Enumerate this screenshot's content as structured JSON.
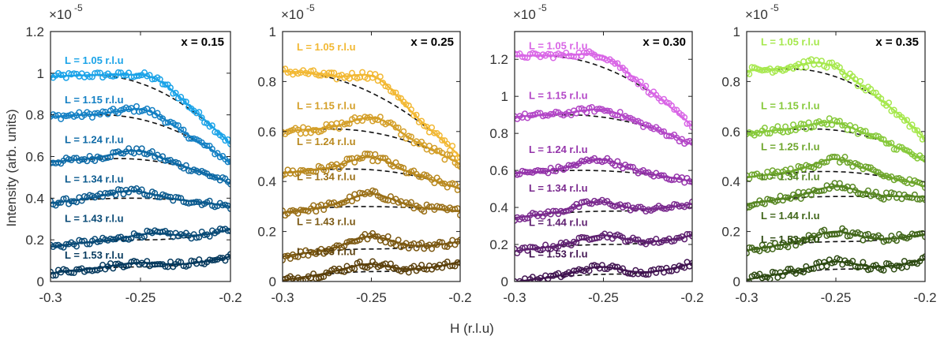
{
  "figure": {
    "ylabel": "Intensity (arb. units)",
    "xlabel": "H (r.l.u)",
    "multiplier": "×10",
    "exponent": "-5"
  },
  "chart_data": [
    {
      "type": "scatter",
      "title": "x = 0.15",
      "xlim": [
        -0.3,
        -0.2
      ],
      "ylim": [
        0,
        1.2
      ],
      "xticks": [
        -0.3,
        -0.25,
        -0.2
      ],
      "xtick_labels": [
        "-0.3",
        "-0.25",
        "-0.2"
      ],
      "yticks": [
        0,
        0.2,
        0.4,
        0.6,
        0.8,
        1,
        1.2
      ],
      "ytick_labels": [
        "0",
        "0.2",
        "0.4",
        "0.6",
        "0.8",
        "1",
        "1.2"
      ],
      "series": [
        {
          "name": "L = 1.05 r.l.u",
          "color": "#1aa3e8",
          "base": 0.99,
          "amp": 0.05,
          "peak": -0.242,
          "bgcenter": -0.276,
          "bgwidth": 0.026,
          "drop": 0.33,
          "label_y": 1.045
        },
        {
          "name": "L = 1.15 r.l.u",
          "color": "#1480c4",
          "base": 0.8,
          "amp": 0.05,
          "peak": -0.247,
          "bgcenter": -0.272,
          "bgwidth": 0.028,
          "drop": 0.23,
          "label_y": 0.855
        },
        {
          "name": "L = 1.24 r.l.u",
          "color": "#0e6aa6",
          "base": 0.59,
          "amp": 0.04,
          "peak": -0.252,
          "bgcenter": -0.262,
          "bgwidth": 0.034,
          "drop": 0.12,
          "label_y": 0.665
        },
        {
          "name": "L = 1.34 r.l.u",
          "color": "#0b5a8e",
          "base": 0.4,
          "amp": 0.035,
          "peak": -0.256,
          "bgcenter": -0.255,
          "bgwidth": 0.04,
          "drop": 0.04,
          "label_y": 0.475
        },
        {
          "name": "L = 1.43 r.l.u",
          "color": "#094a76",
          "base": 0.2,
          "amp": 0.03,
          "peak": -0.243,
          "bgcenter": -0.247,
          "bgwidth": 0.045,
          "drop": -0.05,
          "label_y": 0.285
        },
        {
          "name": "L = 1.53 r.l.u",
          "color": "#063a5e",
          "base": 0.07,
          "amp": 0.02,
          "peak": -0.25,
          "bgcenter": -0.25,
          "bgwidth": 0.05,
          "drop": -0.05,
          "label_y": 0.11
        }
      ]
    },
    {
      "type": "scatter",
      "title": "x = 0.25",
      "xlim": [
        -0.3,
        -0.2
      ],
      "ylim": [
        0,
        1
      ],
      "xticks": [
        -0.3,
        -0.25,
        -0.2
      ],
      "xtick_labels": [
        "-0.3",
        "-0.25",
        "-0.2"
      ],
      "yticks": [
        0,
        0.2,
        0.4,
        0.6,
        0.8,
        1
      ],
      "ytick_labels": [
        "0",
        "0.2",
        "0.4",
        "0.6",
        "0.8",
        "1"
      ],
      "series": [
        {
          "name": "L = 1.05 r.l.u",
          "color": "#f2b833",
          "base": 0.84,
          "amp": 0.07,
          "peak": -0.247,
          "bgcenter": -0.3,
          "bgwidth": 0.06,
          "drop": 0.34,
          "label_y": 0.925
        },
        {
          "name": "L = 1.15 r.l.u",
          "color": "#d49f28",
          "base": 0.61,
          "amp": 0.06,
          "peak": -0.248,
          "bgcenter": -0.272,
          "bgwidth": 0.03,
          "drop": 0.14,
          "label_y": 0.69
        },
        {
          "name": "L = 1.24 r.l.u",
          "color": "#b9891f",
          "base": 0.45,
          "amp": 0.05,
          "peak": -0.25,
          "bgcenter": -0.262,
          "bgwidth": 0.035,
          "drop": 0.08,
          "label_y": 0.545
        },
        {
          "name": "L = 1.34 r.l.u",
          "color": "#9a7018",
          "base": 0.3,
          "amp": 0.05,
          "peak": -0.25,
          "bgcenter": -0.255,
          "bgwidth": 0.04,
          "drop": 0.02,
          "label_y": 0.405
        },
        {
          "name": "L = 1.43 r.l.u",
          "color": "#7b5812",
          "base": 0.13,
          "amp": 0.05,
          "peak": -0.25,
          "bgcenter": -0.25,
          "bgwidth": 0.045,
          "drop": -0.03,
          "label_y": 0.225
        },
        {
          "name": "L = 1.53 r.l.u",
          "color": "#5c410c",
          "base": 0.04,
          "amp": 0.03,
          "peak": -0.252,
          "bgcenter": -0.245,
          "bgwidth": 0.05,
          "drop": -0.04,
          "label_y": 0.105
        }
      ]
    },
    {
      "type": "scatter",
      "title": "x = 0.30",
      "xlim": [
        -0.3,
        -0.2
      ],
      "ylim": [
        0,
        1.35
      ],
      "xticks": [
        -0.3,
        -0.25,
        -0.2
      ],
      "xtick_labels": [
        "-0.3",
        "-0.25",
        "-0.2"
      ],
      "yticks": [
        0,
        0.2,
        0.4,
        0.6,
        0.8,
        1,
        1.2
      ],
      "ytick_labels": [
        "0",
        "0.2",
        "0.4",
        "0.6",
        "0.8",
        "1",
        "1.2"
      ],
      "series": [
        {
          "name": "L = 1.05 r.l.u",
          "color": "#d966e6",
          "base": 1.22,
          "amp": 0.06,
          "peak": -0.25,
          "bgcenter": -0.285,
          "bgwidth": 0.035,
          "drop": 0.38,
          "label_y": 1.255
        },
        {
          "name": "L = 1.15 r.l.u",
          "color": "#b347c7",
          "base": 0.9,
          "amp": 0.04,
          "peak": -0.25,
          "bgcenter": -0.27,
          "bgwidth": 0.035,
          "drop": 0.16,
          "label_y": 0.985
        },
        {
          "name": "L = 1.24 r.l.u",
          "color": "#9434aa",
          "base": 0.6,
          "amp": 0.06,
          "peak": -0.252,
          "bgcenter": -0.262,
          "bgwidth": 0.035,
          "drop": 0.06,
          "label_y": 0.695
        },
        {
          "name": "L = 1.34 r.l.u",
          "color": "#7a2a8e",
          "base": 0.38,
          "amp": 0.05,
          "peak": -0.253,
          "bgcenter": -0.245,
          "bgwidth": 0.04,
          "drop": -0.04,
          "label_y": 0.485
        },
        {
          "name": "L = 1.44 r.l.u",
          "color": "#5e2070",
          "base": 0.2,
          "amp": 0.05,
          "peak": -0.25,
          "bgcenter": -0.245,
          "bgwidth": 0.045,
          "drop": -0.05,
          "label_y": 0.3
        },
        {
          "name": "L = 1.53 r.l.u",
          "color": "#421552",
          "base": 0.04,
          "amp": 0.04,
          "peak": -0.252,
          "bgcenter": -0.24,
          "bgwidth": 0.05,
          "drop": -0.06,
          "label_y": 0.13
        }
      ]
    },
    {
      "type": "scatter",
      "title": "x = 0.35",
      "xlim": [
        -0.3,
        -0.2
      ],
      "ylim": [
        0,
        1
      ],
      "xticks": [
        -0.3,
        -0.25,
        -0.2
      ],
      "xtick_labels": [
        "-0.3",
        "-0.25",
        "-0.2"
      ],
      "yticks": [
        0,
        0.2,
        0.4,
        0.6,
        0.8,
        1
      ],
      "ytick_labels": [
        "0",
        "0.2",
        "0.4",
        "0.6",
        "0.8",
        "1"
      ],
      "series": [
        {
          "name": "L = 1.05 r.l.u",
          "color": "#a6e84d",
          "base": 0.85,
          "amp": 0.04,
          "peak": -0.255,
          "bgcenter": -0.275,
          "bgwidth": 0.03,
          "drop": 0.28,
          "label_y": 0.945
        },
        {
          "name": "L = 1.15 r.l.u",
          "color": "#86c93a",
          "base": 0.61,
          "amp": 0.03,
          "peak": -0.252,
          "bgcenter": -0.262,
          "bgwidth": 0.033,
          "drop": 0.13,
          "label_y": 0.69
        },
        {
          "name": "L = 1.25 r.l.u",
          "color": "#6ea62c",
          "base": 0.44,
          "amp": 0.05,
          "peak": -0.25,
          "bgcenter": -0.255,
          "bgwidth": 0.035,
          "drop": 0.06,
          "label_y": 0.525
        },
        {
          "name": "L = 1.34 r.l.u",
          "color": "#578623",
          "base": 0.34,
          "amp": 0.04,
          "peak": -0.25,
          "bgcenter": -0.25,
          "bgwidth": 0.04,
          "drop": 0.0,
          "label_y": 0.405
        },
        {
          "name": "L = 1.44 r.l.u",
          "color": "#41661a",
          "base": 0.16,
          "amp": 0.04,
          "peak": -0.25,
          "bgcenter": -0.245,
          "bgwidth": 0.045,
          "drop": -0.03,
          "label_y": 0.25
        },
        {
          "name": "L = 1.53 r.l.u",
          "color": "#2d4a12",
          "base": 0.05,
          "amp": 0.03,
          "peak": -0.25,
          "bgcenter": -0.24,
          "bgwidth": 0.05,
          "drop": -0.04,
          "label_y": 0.155
        }
      ]
    }
  ]
}
